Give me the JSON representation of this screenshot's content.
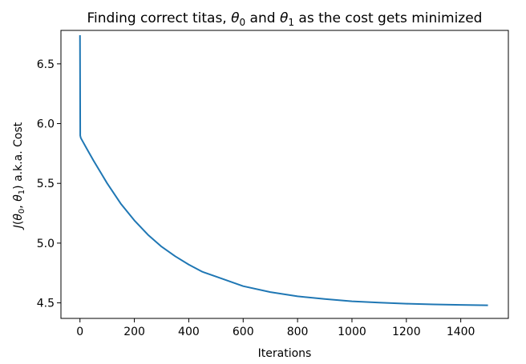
{
  "chart_data": {
    "type": "line",
    "title": {
      "prefix": "Finding correct titas, ",
      "theta": "θ",
      "sub0": "0",
      "middle": " and ",
      "sub1": "1",
      "suffix": " as the cost gets minimized"
    },
    "xlabel": "Iterations",
    "ylabel": {
      "j": "J",
      "open": "(",
      "theta": "θ",
      "sub0": "0",
      "comma": ", ",
      "sub1": "1",
      "close": ")",
      "suffix": " a.k.a. Cost"
    },
    "xlim": [
      -70,
      1575
    ],
    "ylim": [
      4.37,
      6.78
    ],
    "xticks": [
      0,
      200,
      400,
      600,
      800,
      1000,
      1200,
      1400
    ],
    "xtick_labels": [
      "0",
      "200",
      "400",
      "600",
      "800",
      "1000",
      "1200",
      "1400"
    ],
    "yticks": [
      4.5,
      5.0,
      5.5,
      6.0,
      6.5
    ],
    "ytick_labels": [
      "4.5",
      "5.0",
      "5.5",
      "6.0",
      "6.5"
    ],
    "grid": false,
    "series": [
      {
        "color": "#1f77b4",
        "x": [
          0,
          1,
          2,
          3,
          25,
          50,
          100,
          150,
          200,
          250,
          300,
          350,
          400,
          450,
          500,
          600,
          700,
          800,
          900,
          1000,
          1100,
          1200,
          1300,
          1400,
          1500
        ],
        "y": [
          6.74,
          5.9,
          5.89,
          5.88,
          5.79,
          5.69,
          5.5,
          5.33,
          5.19,
          5.07,
          4.97,
          4.89,
          4.82,
          4.76,
          4.72,
          4.64,
          4.59,
          4.555,
          4.532,
          4.513,
          4.502,
          4.493,
          4.487,
          4.483,
          4.48
        ]
      }
    ]
  }
}
